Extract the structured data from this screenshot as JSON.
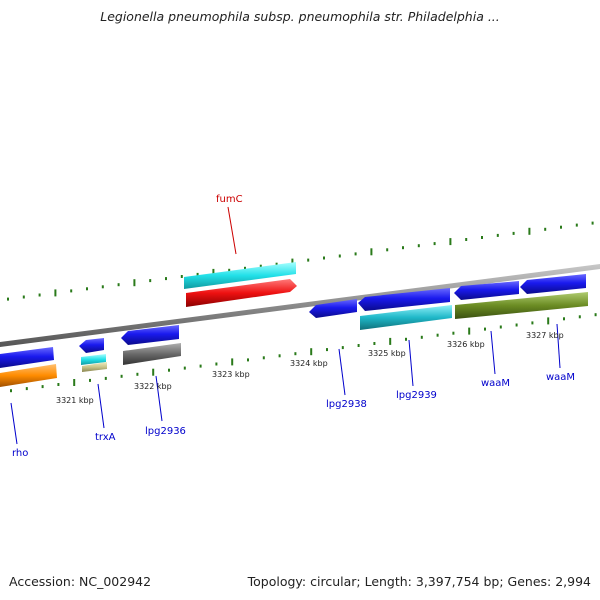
{
  "title": "Legionella pneumophila subsp. pneumophila str. Philadelphia ...",
  "footer": {
    "accession": "Accession: NC_002942",
    "summary": "Topology: circular; Length: 3,397,754 bp; Genes: 2,994"
  },
  "scale_labels": [
    "3321 kbp",
    "3322 kbp",
    "3323 kbp",
    "3324 kbp",
    "3325 kbp",
    "3326 kbp",
    "3327 kbp"
  ],
  "gene_labels": {
    "fumC": "fumC",
    "rho": "rho",
    "trxA": "trxA",
    "lpg2936": "lpg2936",
    "lpg2938": "lpg2938",
    "lpg2939": "lpg2939",
    "waaM_1": "waaM",
    "waaM_2": "waaM"
  },
  "colors": {
    "backbone": "#8a8a8a",
    "tick_green": "#2a7a1a",
    "gene_blue": "#1a1aee",
    "gene_cyan": "#22e0e8",
    "gene_red": "#ee1111",
    "gene_orange": "#ff8c00",
    "gene_gray": "#6a6a6a",
    "gene_olive": "#6b8c23",
    "gene_teal": "#1fb8c8",
    "gene_khaki": "#c8c48a",
    "label_red": "#cc0000",
    "label_blue": "#0000cc"
  }
}
